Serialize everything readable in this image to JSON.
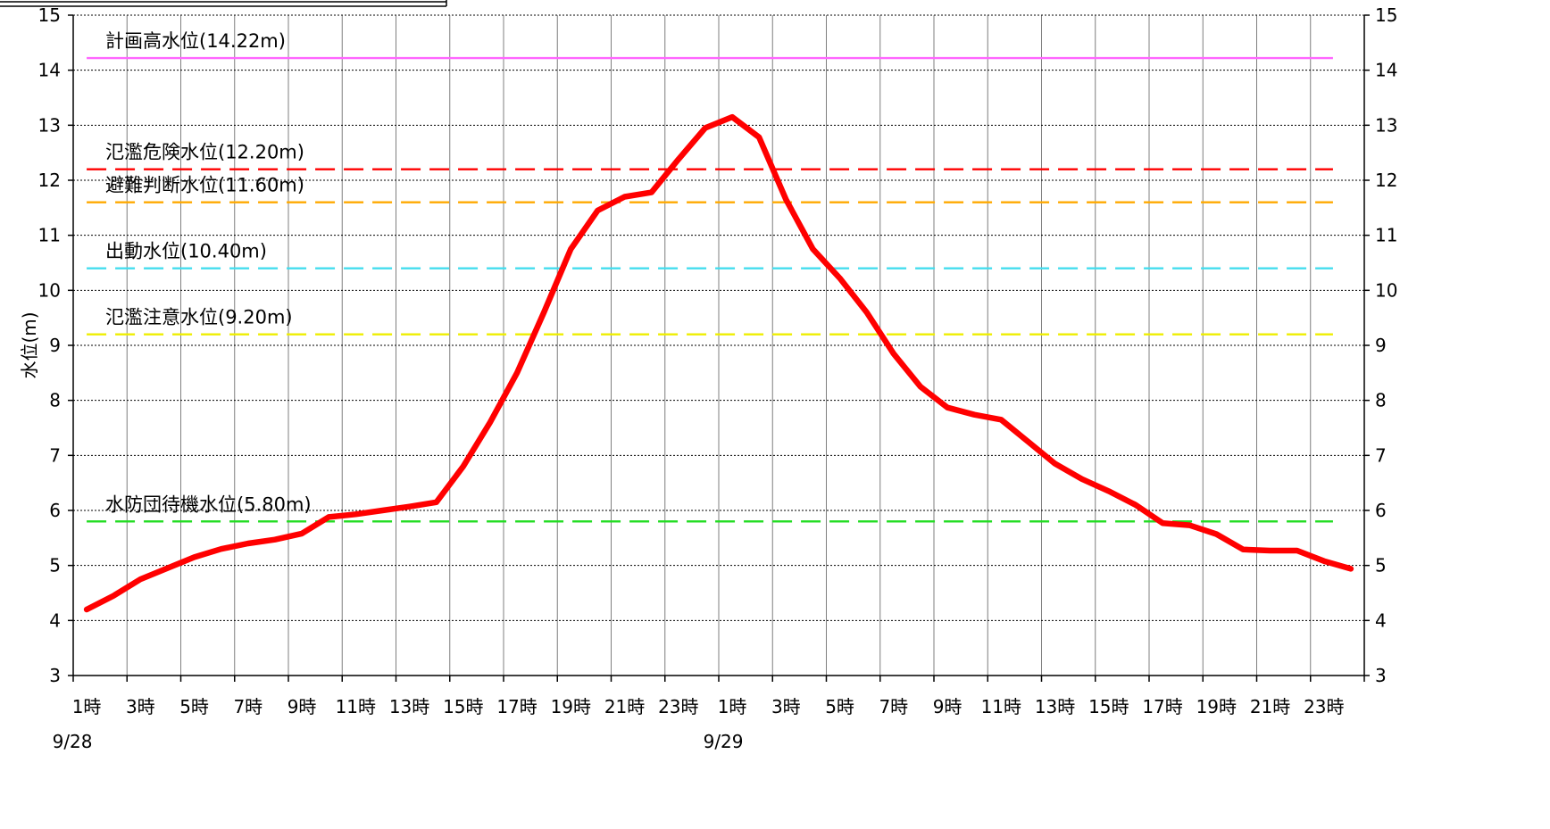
{
  "chart_data": {
    "type": "line",
    "ylabel": "水位(m)",
    "ylim": [
      3,
      15
    ],
    "y_ticks": [
      3,
      4,
      5,
      6,
      7,
      8,
      9,
      10,
      11,
      12,
      13,
      14,
      15
    ],
    "grid": true,
    "secondary_y_axis": true,
    "x_tick_labels": [
      "1時",
      "3時",
      "5時",
      "7時",
      "9時",
      "11時",
      "13時",
      "15時",
      "17時",
      "19時",
      "21時",
      "23時",
      "1時",
      "3時",
      "5時",
      "7時",
      "9時",
      "11時",
      "13時",
      "15時",
      "17時",
      "19時",
      "21時",
      "23時"
    ],
    "date_labels": [
      "9/28",
      "9/29"
    ],
    "series": [
      {
        "color": "#ff0000",
        "values": [
          4.2,
          4.45,
          4.75,
          4.95,
          5.15,
          5.3,
          5.4,
          5.47,
          5.58,
          5.88,
          5.93,
          6.0,
          6.07,
          6.15,
          6.8,
          7.6,
          8.5,
          9.6,
          10.75,
          11.45,
          11.7,
          11.78,
          12.38,
          12.95,
          13.15,
          12.78,
          11.65,
          10.75,
          10.22,
          9.6,
          8.85,
          8.25,
          7.87,
          7.74,
          7.65,
          7.25,
          6.85,
          6.57,
          6.35,
          6.1,
          5.77,
          5.73,
          5.57,
          5.29,
          5.27,
          5.27,
          5.08,
          4.94
        ]
      }
    ],
    "reference_lines": [
      {
        "label": "計画高水位(14.22m)",
        "value": 14.22,
        "color": "#ff66ff",
        "style": "solid"
      },
      {
        "label": "氾濫危険水位(12.20m)",
        "value": 12.2,
        "color": "#ff0000",
        "style": "dashed"
      },
      {
        "label": "避難判断水位(11.60m)",
        "value": 11.6,
        "color": "#ffaa00",
        "style": "dashed"
      },
      {
        "label": "出動水位(10.40m)",
        "value": 10.4,
        "color": "#44ddee",
        "style": "dashed"
      },
      {
        "label": "氾濫注意水位(9.20m)",
        "value": 9.2,
        "color": "#eeee00",
        "style": "dashed"
      },
      {
        "label": "水防団待機水位(5.80m)",
        "value": 5.8,
        "color": "#22dd22",
        "style": "dashed"
      }
    ]
  }
}
